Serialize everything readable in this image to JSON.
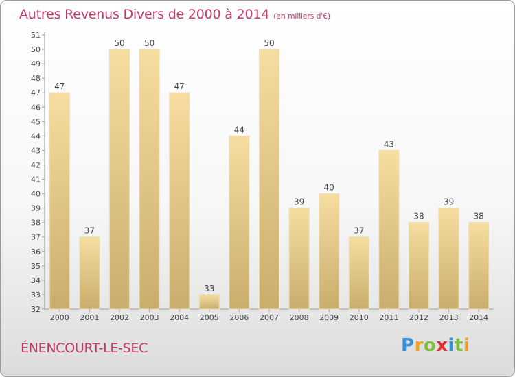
{
  "chart_data": {
    "type": "bar",
    "title": "Autres Revenus Divers de 2000 à 2014",
    "subtitle": "(en milliers d'€)",
    "categories": [
      "2000",
      "2001",
      "2002",
      "2003",
      "2004",
      "2005",
      "2006",
      "2007",
      "2008",
      "2009",
      "2010",
      "2011",
      "2012",
      "2013",
      "2014"
    ],
    "values": [
      47,
      37,
      50,
      50,
      47,
      33,
      44,
      50,
      39,
      40,
      37,
      43,
      38,
      39,
      38
    ],
    "ylim": [
      32,
      51
    ],
    "yticks": [
      32,
      33,
      34,
      35,
      36,
      37,
      38,
      39,
      40,
      41,
      42,
      43,
      44,
      45,
      46,
      47,
      48,
      49,
      50,
      51
    ],
    "grid": false,
    "bar_color": "#e8cc80",
    "accent_color": "#c23a6a"
  },
  "footer": {
    "town": "ÉNENCOURT-LE-SEC",
    "logo": {
      "p": "P",
      "r": "r",
      "o": "o",
      "x": "x",
      "i1": "i",
      "t": "t",
      "i2": "i"
    }
  }
}
